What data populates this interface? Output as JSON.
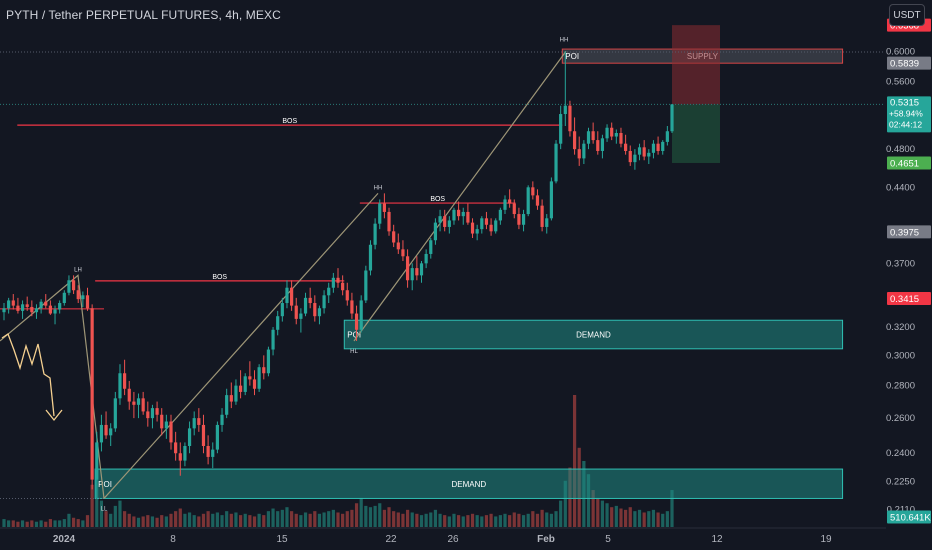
{
  "header": {
    "symbol_title": "PYTH / Tether PERPETUAL FUTURES, 4h, MEXC",
    "currency": "USDT"
  },
  "colors": {
    "background": "#131722",
    "up": "#26a69a",
    "down": "#ef5350",
    "bos_line": "#f23645",
    "trend_line": "#9e9677",
    "zone_fill": "#1f8a84",
    "zone_border": "#2fbfb3",
    "supply_fill": "#363a45",
    "supply_border": "#d64545",
    "arrow": "#f5d090",
    "axis_text": "#b2b5be"
  },
  "chart_data": {
    "type": "candlestick",
    "title": "PYTH / Tether PERPETUAL FUTURES, 4h, MEXC",
    "y_axis": {
      "ylim": [
        0.2024,
        0.6443
      ],
      "scale": "log",
      "ticks": [
        "0.6000",
        "0.5600",
        "0.4800",
        "0.4400",
        "0.3700",
        "0.3200",
        "0.3000",
        "0.2800",
        "0.2600",
        "0.2400",
        "0.2250",
        "0.2110"
      ]
    },
    "x_axis": {
      "ticks": [
        "2024",
        "8",
        "15",
        "22",
        "26",
        "Feb",
        "5",
        "12",
        "19"
      ]
    },
    "price_labels": [
      {
        "name": "top",
        "text": "0.6368",
        "value": 0.6368,
        "color": "#f23645"
      },
      {
        "name": "supply",
        "text": "0.5839",
        "value": 0.5839,
        "color": "#787b86"
      },
      {
        "name": "last",
        "text": "0.5315",
        "value": 0.5315,
        "color": "#26a69a",
        "change": "+58.94%",
        "countdown": "02:44:12"
      },
      {
        "name": "stop",
        "text": "0.4651",
        "value": 0.4651,
        "color": "#4caf50"
      },
      {
        "name": "level1",
        "text": "0.3975",
        "value": 0.3975,
        "color": "#787b86"
      },
      {
        "name": "level2",
        "text": "0.3415",
        "value": 0.3415,
        "color": "#f23645"
      },
      {
        "name": "volume",
        "text": "510.641K",
        "value": 510641,
        "color": "#26a69a"
      }
    ],
    "zones": [
      {
        "kind": "demand",
        "left_label": "POI",
        "center_label": "DEMAND",
        "x_start": "Jan 19",
        "x_end": "Feb 20",
        "top": 0.325,
        "bottom": 0.3045
      },
      {
        "kind": "demand",
        "left_label": "POI",
        "center_label": "DEMAND",
        "x_start": "Jan 3",
        "x_end": "Feb 20",
        "top": 0.2315,
        "bottom": 0.2165
      },
      {
        "kind": "supply",
        "left_label": "POI",
        "center_label": "SUPPLY",
        "x_start": "Feb 2",
        "x_end": "Feb 20",
        "top": 0.603,
        "bottom": 0.5839
      }
    ],
    "bos_levels": [
      {
        "label": "BOS",
        "price": 0.507,
        "x_start": "Dec 29",
        "x_end": "Feb 2"
      },
      {
        "label": "BOS",
        "price": 0.4245,
        "x_start": "Jan 20",
        "x_end": "Jan 30"
      },
      {
        "label": "BOS",
        "price": 0.3555,
        "x_start": "Jan 3",
        "x_end": "Jan 19"
      }
    ],
    "swing_labels": [
      {
        "text": "LH",
        "price": 0.36
      },
      {
        "text": "LL",
        "price": 0.2165
      },
      {
        "text": "HH",
        "price": 0.434
      },
      {
        "text": "HL",
        "price": 0.31
      },
      {
        "text": "HH",
        "price": 0.6
      }
    ],
    "trade_box": {
      "entry": 0.5315,
      "target": 0.6368,
      "stop": 0.4651
    },
    "candles": [
      [
        0.331,
        0.338,
        0.325,
        0.334
      ],
      [
        0.334,
        0.342,
        0.33,
        0.34
      ],
      [
        0.34,
        0.345,
        0.333,
        0.336
      ],
      [
        0.336,
        0.342,
        0.33,
        0.332
      ],
      [
        0.332,
        0.34,
        0.326,
        0.337
      ],
      [
        0.337,
        0.343,
        0.332,
        0.335
      ],
      [
        0.335,
        0.34,
        0.328,
        0.331
      ],
      [
        0.331,
        0.337,
        0.326,
        0.334
      ],
      [
        0.334,
        0.341,
        0.33,
        0.339
      ],
      [
        0.339,
        0.345,
        0.334,
        0.336
      ],
      [
        0.336,
        0.34,
        0.329,
        0.33
      ],
      [
        0.33,
        0.336,
        0.322,
        0.333
      ],
      [
        0.333,
        0.34,
        0.33,
        0.338
      ],
      [
        0.338,
        0.348,
        0.336,
        0.346
      ],
      [
        0.346,
        0.36,
        0.344,
        0.356
      ],
      [
        0.356,
        0.36,
        0.345,
        0.348
      ],
      [
        0.348,
        0.352,
        0.338,
        0.341
      ],
      [
        0.341,
        0.347,
        0.335,
        0.344
      ],
      [
        0.344,
        0.35,
        0.332,
        0.334
      ],
      [
        0.334,
        0.337,
        0.221,
        0.226
      ],
      [
        0.226,
        0.252,
        0.2165,
        0.246
      ],
      [
        0.246,
        0.262,
        0.241,
        0.256
      ],
      [
        0.256,
        0.264,
        0.248,
        0.25
      ],
      [
        0.25,
        0.257,
        0.244,
        0.254
      ],
      [
        0.254,
        0.276,
        0.252,
        0.272
      ],
      [
        0.272,
        0.294,
        0.268,
        0.288
      ],
      [
        0.288,
        0.297,
        0.274,
        0.278
      ],
      [
        0.278,
        0.283,
        0.265,
        0.27
      ],
      [
        0.27,
        0.276,
        0.26,
        0.268
      ],
      [
        0.268,
        0.275,
        0.26,
        0.272
      ],
      [
        0.272,
        0.276,
        0.262,
        0.264
      ],
      [
        0.264,
        0.27,
        0.255,
        0.26
      ],
      [
        0.26,
        0.268,
        0.254,
        0.266
      ],
      [
        0.266,
        0.27,
        0.258,
        0.262
      ],
      [
        0.262,
        0.266,
        0.25,
        0.254
      ],
      [
        0.254,
        0.262,
        0.248,
        0.258
      ],
      [
        0.258,
        0.262,
        0.242,
        0.246
      ],
      [
        0.246,
        0.252,
        0.236,
        0.24
      ],
      [
        0.24,
        0.246,
        0.228,
        0.236
      ],
      [
        0.236,
        0.246,
        0.233,
        0.244
      ],
      [
        0.244,
        0.258,
        0.24,
        0.254
      ],
      [
        0.254,
        0.264,
        0.25,
        0.26
      ],
      [
        0.26,
        0.266,
        0.252,
        0.256
      ],
      [
        0.256,
        0.262,
        0.24,
        0.244
      ],
      [
        0.244,
        0.25,
        0.234,
        0.238
      ],
      [
        0.238,
        0.246,
        0.232,
        0.242
      ],
      [
        0.242,
        0.258,
        0.24,
        0.256
      ],
      [
        0.256,
        0.266,
        0.252,
        0.262
      ],
      [
        0.262,
        0.278,
        0.26,
        0.274
      ],
      [
        0.274,
        0.282,
        0.266,
        0.27
      ],
      [
        0.27,
        0.284,
        0.268,
        0.28
      ],
      [
        0.28,
        0.29,
        0.272,
        0.276
      ],
      [
        0.276,
        0.288,
        0.274,
        0.286
      ],
      [
        0.286,
        0.296,
        0.28,
        0.284
      ],
      [
        0.284,
        0.29,
        0.274,
        0.278
      ],
      [
        0.278,
        0.294,
        0.276,
        0.292
      ],
      [
        0.292,
        0.3,
        0.284,
        0.288
      ],
      [
        0.288,
        0.306,
        0.286,
        0.304
      ],
      [
        0.304,
        0.32,
        0.3,
        0.318
      ],
      [
        0.318,
        0.332,
        0.314,
        0.328
      ],
      [
        0.328,
        0.342,
        0.324,
        0.338
      ],
      [
        0.338,
        0.356,
        0.334,
        0.35
      ],
      [
        0.35,
        0.356,
        0.332,
        0.336
      ],
      [
        0.336,
        0.342,
        0.322,
        0.326
      ],
      [
        0.326,
        0.334,
        0.316,
        0.33
      ],
      [
        0.33,
        0.346,
        0.328,
        0.342
      ],
      [
        0.342,
        0.35,
        0.334,
        0.338
      ],
      [
        0.338,
        0.344,
        0.324,
        0.328
      ],
      [
        0.328,
        0.336,
        0.322,
        0.334
      ],
      [
        0.334,
        0.348,
        0.33,
        0.344
      ],
      [
        0.344,
        0.354,
        0.338,
        0.35
      ],
      [
        0.35,
        0.362,
        0.346,
        0.358
      ],
      [
        0.358,
        0.366,
        0.35,
        0.354
      ],
      [
        0.354,
        0.36,
        0.344,
        0.348
      ],
      [
        0.348,
        0.354,
        0.336,
        0.34
      ],
      [
        0.34,
        0.346,
        0.326,
        0.33
      ],
      [
        0.33,
        0.336,
        0.31,
        0.318
      ],
      [
        0.318,
        0.344,
        0.316,
        0.34
      ],
      [
        0.34,
        0.368,
        0.338,
        0.364
      ],
      [
        0.364,
        0.39,
        0.36,
        0.386
      ],
      [
        0.386,
        0.41,
        0.382,
        0.405
      ],
      [
        0.405,
        0.428,
        0.4,
        0.424
      ],
      [
        0.424,
        0.434,
        0.41,
        0.416
      ],
      [
        0.416,
        0.42,
        0.394,
        0.398
      ],
      [
        0.398,
        0.404,
        0.384,
        0.388
      ],
      [
        0.388,
        0.396,
        0.378,
        0.382
      ],
      [
        0.382,
        0.39,
        0.372,
        0.376
      ],
      [
        0.376,
        0.382,
        0.35,
        0.356
      ],
      [
        0.356,
        0.37,
        0.348,
        0.366
      ],
      [
        0.366,
        0.376,
        0.356,
        0.36
      ],
      [
        0.36,
        0.372,
        0.354,
        0.37
      ],
      [
        0.37,
        0.382,
        0.366,
        0.378
      ],
      [
        0.378,
        0.392,
        0.374,
        0.39
      ],
      [
        0.39,
        0.41,
        0.386,
        0.406
      ],
      [
        0.406,
        0.418,
        0.398,
        0.412
      ],
      [
        0.412,
        0.418,
        0.398,
        0.402
      ],
      [
        0.402,
        0.412,
        0.396,
        0.408
      ],
      [
        0.408,
        0.42,
        0.404,
        0.418
      ],
      [
        0.418,
        0.426,
        0.408,
        0.412
      ],
      [
        0.412,
        0.42,
        0.404,
        0.416
      ],
      [
        0.416,
        0.424,
        0.404,
        0.406
      ],
      [
        0.406,
        0.41,
        0.392,
        0.396
      ],
      [
        0.396,
        0.404,
        0.39,
        0.4
      ],
      [
        0.4,
        0.412,
        0.396,
        0.41
      ],
      [
        0.41,
        0.416,
        0.4,
        0.404
      ],
      [
        0.404,
        0.41,
        0.394,
        0.398
      ],
      [
        0.398,
        0.41,
        0.396,
        0.408
      ],
      [
        0.408,
        0.42,
        0.404,
        0.418
      ],
      [
        0.418,
        0.432,
        0.414,
        0.428
      ],
      [
        0.428,
        0.438,
        0.42,
        0.424
      ],
      [
        0.424,
        0.428,
        0.41,
        0.414
      ],
      [
        0.414,
        0.42,
        0.4,
        0.404
      ],
      [
        0.404,
        0.418,
        0.398,
        0.414
      ],
      [
        0.414,
        0.442,
        0.412,
        0.44
      ],
      [
        0.44,
        0.446,
        0.428,
        0.432
      ],
      [
        0.432,
        0.438,
        0.418,
        0.422
      ],
      [
        0.422,
        0.428,
        0.398,
        0.402
      ],
      [
        0.402,
        0.414,
        0.396,
        0.41
      ],
      [
        0.41,
        0.45,
        0.408,
        0.446
      ],
      [
        0.446,
        0.49,
        0.444,
        0.486
      ],
      [
        0.486,
        0.53,
        0.48,
        0.52
      ],
      [
        0.52,
        0.6,
        0.506,
        0.53
      ],
      [
        0.53,
        0.536,
        0.494,
        0.5
      ],
      [
        0.5,
        0.516,
        0.474,
        0.48
      ],
      [
        0.48,
        0.494,
        0.462,
        0.47
      ],
      [
        0.47,
        0.49,
        0.464,
        0.486
      ],
      [
        0.486,
        0.504,
        0.48,
        0.5
      ],
      [
        0.5,
        0.51,
        0.486,
        0.49
      ],
      [
        0.49,
        0.5,
        0.474,
        0.478
      ],
      [
        0.478,
        0.496,
        0.47,
        0.492
      ],
      [
        0.492,
        0.508,
        0.488,
        0.504
      ],
      [
        0.504,
        0.51,
        0.49,
        0.494
      ],
      [
        0.494,
        0.502,
        0.486,
        0.498
      ],
      [
        0.498,
        0.504,
        0.482,
        0.486
      ],
      [
        0.486,
        0.496,
        0.474,
        0.478
      ],
      [
        0.478,
        0.484,
        0.462,
        0.466
      ],
      [
        0.466,
        0.48,
        0.458,
        0.474
      ],
      [
        0.474,
        0.486,
        0.468,
        0.482
      ],
      [
        0.482,
        0.49,
        0.468,
        0.472
      ],
      [
        0.472,
        0.48,
        0.464,
        0.476
      ],
      [
        0.476,
        0.49,
        0.47,
        0.486
      ],
      [
        0.486,
        0.494,
        0.474,
        0.478
      ],
      [
        0.478,
        0.49,
        0.474,
        0.488
      ],
      [
        0.488,
        0.506,
        0.484,
        0.5
      ],
      [
        0.5,
        0.532,
        0.498,
        0.5315
      ]
    ],
    "volume": [
      0.06,
      0.05,
      0.05,
      0.04,
      0.05,
      0.04,
      0.05,
      0.04,
      0.05,
      0.04,
      0.06,
      0.05,
      0.05,
      0.06,
      0.1,
      0.07,
      0.06,
      0.05,
      0.09,
      0.32,
      0.36,
      0.2,
      0.12,
      0.1,
      0.16,
      0.2,
      0.12,
      0.1,
      0.08,
      0.07,
      0.08,
      0.09,
      0.08,
      0.07,
      0.09,
      0.08,
      0.1,
      0.12,
      0.14,
      0.1,
      0.11,
      0.09,
      0.08,
      0.1,
      0.12,
      0.1,
      0.11,
      0.09,
      0.12,
      0.1,
      0.11,
      0.09,
      0.1,
      0.09,
      0.08,
      0.1,
      0.09,
      0.12,
      0.14,
      0.12,
      0.13,
      0.15,
      0.12,
      0.1,
      0.09,
      0.11,
      0.1,
      0.12,
      0.1,
      0.11,
      0.12,
      0.13,
      0.11,
      0.1,
      0.12,
      0.13,
      0.18,
      0.22,
      0.16,
      0.15,
      0.16,
      0.18,
      0.13,
      0.15,
      0.12,
      0.11,
      0.1,
      0.13,
      0.11,
      0.1,
      0.09,
      0.1,
      0.11,
      0.13,
      0.1,
      0.09,
      0.08,
      0.1,
      0.09,
      0.08,
      0.09,
      0.1,
      0.09,
      0.08,
      0.09,
      0.1,
      0.08,
      0.09,
      0.1,
      0.09,
      0.11,
      0.1,
      0.09,
      0.1,
      0.12,
      0.1,
      0.13,
      0.11,
      0.1,
      0.12,
      0.2,
      0.35,
      0.45,
      1.0,
      0.6,
      0.5,
      0.4,
      0.28,
      0.22,
      0.2,
      0.18,
      0.15,
      0.16,
      0.14,
      0.13,
      0.15,
      0.12,
      0.13,
      0.11,
      0.12,
      0.13,
      0.11,
      0.1,
      0.12,
      0.28
    ]
  }
}
